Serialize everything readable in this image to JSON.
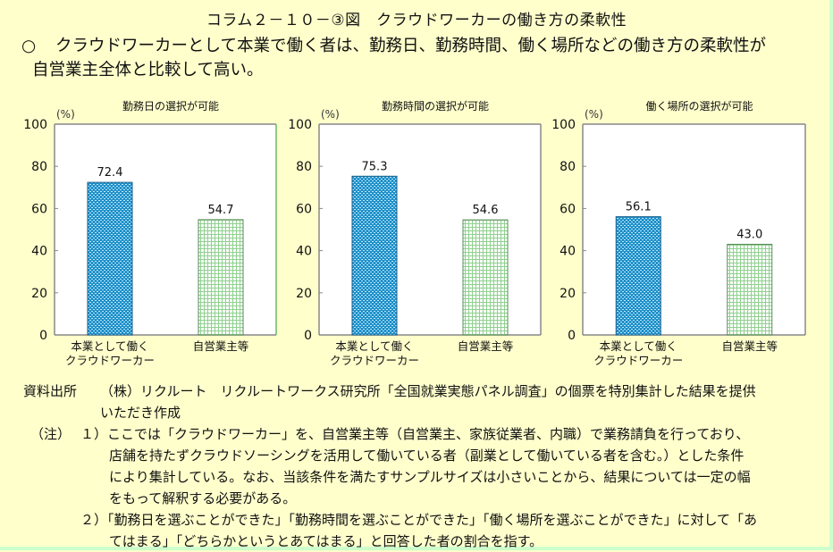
{
  "figure": {
    "title": "コラム２－１０－③図　クラウドワーカーの働き方の柔軟性",
    "summary_bullet": "○",
    "summary_line1": "クラウドワーカーとして本業で働く者は、勤務日、勤務時間、働く場所などの働き方の柔軟性が",
    "summary_line2": "自営業主全体と比較して高い。"
  },
  "colors": {
    "background": "#ffffcc",
    "crowdworker_bar": "#1e90c8",
    "self_employed_bar": "#8fd08f",
    "plot_bg": "#ffffff",
    "axis": "#888888"
  },
  "chart_data": [
    {
      "type": "bar",
      "title": "勤務日の選択が可能",
      "ylabel": "(%)",
      "categories": [
        "本業として働く\nクラウドワーカー",
        "自営業主等"
      ],
      "category_lines": [
        [
          "本業として働く",
          "クラウドワーカー"
        ],
        [
          "自営業主等"
        ]
      ],
      "values": [
        72.4,
        54.7
      ],
      "value_labels": [
        "72.4",
        "54.7"
      ],
      "ylim": [
        0,
        100
      ],
      "yticks": [
        "0",
        "20",
        "40",
        "60",
        "80",
        "100"
      ],
      "grid": false
    },
    {
      "type": "bar",
      "title": "勤務時間の選択が可能",
      "ylabel": "(%)",
      "categories": [
        "本業として働く\nクラウドワーカー",
        "自営業主等"
      ],
      "category_lines": [
        [
          "本業として働く",
          "クラウドワーカー"
        ],
        [
          "自営業主等"
        ]
      ],
      "values": [
        75.3,
        54.6
      ],
      "value_labels": [
        "75.3",
        "54.6"
      ],
      "ylim": [
        0,
        100
      ],
      "yticks": [
        "0",
        "20",
        "40",
        "60",
        "80",
        "100"
      ],
      "grid": false
    },
    {
      "type": "bar",
      "title": "働く場所の選択が可能",
      "ylabel": "(%)",
      "categories": [
        "本業として働く\nクラウドワーカー",
        "自営業主等"
      ],
      "category_lines": [
        [
          "本業として働く",
          "クラウドワーカー"
        ],
        [
          "自営業主等"
        ]
      ],
      "values": [
        56.1,
        43.0
      ],
      "value_labels": [
        "56.1",
        "43.0"
      ],
      "ylim": [
        0,
        100
      ],
      "yticks": [
        "0",
        "20",
        "40",
        "60",
        "80",
        "100"
      ],
      "grid": false
    }
  ],
  "source": {
    "label": "資料出所",
    "text1": "（株）リクルート　リクルートワークス研究所「全国就業実態パネル調査」の個票を特別集計した結果を提供",
    "text2": "いただき作成",
    "note_label": "（注）",
    "note1_line1": "１）ここでは「クラウドワーカー」を、自営業主等（自営業主、家族従業者、内職）で業務請負を行っており、",
    "note1_line2": "店舗を持たずクラウドソーシングを活用して働いている者（副業として働いている者を含む。）とした条件",
    "note1_line3": "により集計している。なお、当該条件を満たすサンプルサイズは小さいことから、結果については一定の幅",
    "note1_line4": "をもって解釈する必要がある。",
    "note2_line1": "２）「勤務日を選ぶことができた」「勤務時間を選ぶことができた」「働く場所を選ぶことができた」に対して「あ",
    "note2_line2": "てはまる」「どちらかというとあてはまる」と回答した者の割合を指す。"
  }
}
